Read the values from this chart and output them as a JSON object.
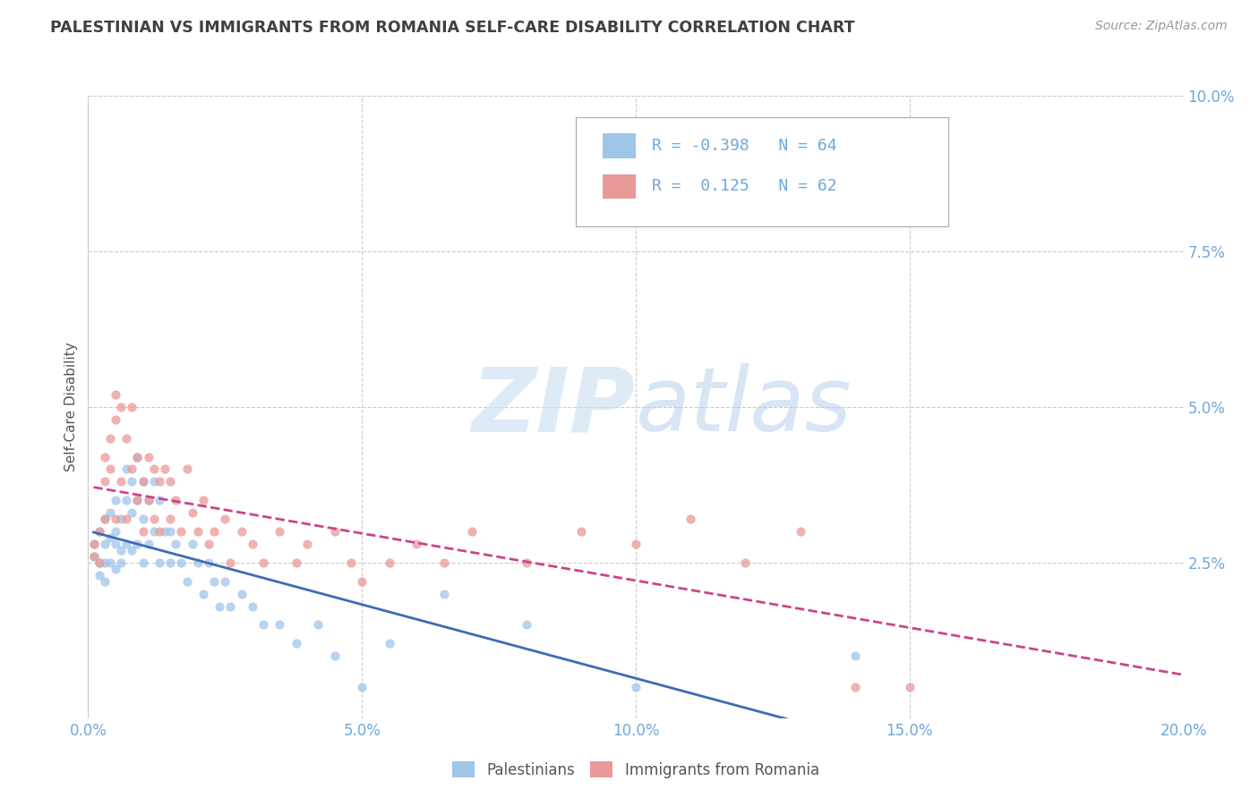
{
  "title": "PALESTINIAN VS IMMIGRANTS FROM ROMANIA SELF-CARE DISABILITY CORRELATION CHART",
  "source": "Source: ZipAtlas.com",
  "ylabel": "Self-Care Disability",
  "xlim": [
    0.0,
    0.2
  ],
  "ylim": [
    0.0,
    0.1
  ],
  "xticks": [
    0.0,
    0.05,
    0.1,
    0.15,
    0.2
  ],
  "yticks_right": [
    0.025,
    0.05,
    0.075,
    0.1
  ],
  "color_blue": "#9fc5e8",
  "color_pink": "#ea9999",
  "color_line_blue": "#3d6cb5",
  "color_line_pink": "#cc4488",
  "color_axis_ticks": "#6fa8dc",
  "color_title": "#404040",
  "color_source": "#999999",
  "legend_label1": "Palestinians",
  "legend_label2": "Immigrants from Romania",
  "palestinians_x": [
    0.001,
    0.001,
    0.002,
    0.002,
    0.002,
    0.003,
    0.003,
    0.003,
    0.003,
    0.004,
    0.004,
    0.004,
    0.005,
    0.005,
    0.005,
    0.005,
    0.006,
    0.006,
    0.006,
    0.007,
    0.007,
    0.007,
    0.008,
    0.008,
    0.008,
    0.009,
    0.009,
    0.009,
    0.01,
    0.01,
    0.01,
    0.011,
    0.011,
    0.012,
    0.012,
    0.013,
    0.013,
    0.014,
    0.015,
    0.015,
    0.016,
    0.017,
    0.018,
    0.019,
    0.02,
    0.021,
    0.022,
    0.023,
    0.024,
    0.025,
    0.026,
    0.028,
    0.03,
    0.032,
    0.035,
    0.038,
    0.042,
    0.045,
    0.05,
    0.055,
    0.065,
    0.08,
    0.1,
    0.14
  ],
  "palestinians_y": [
    0.028,
    0.026,
    0.03,
    0.025,
    0.023,
    0.032,
    0.028,
    0.025,
    0.022,
    0.033,
    0.029,
    0.025,
    0.035,
    0.03,
    0.028,
    0.024,
    0.032,
    0.027,
    0.025,
    0.04,
    0.035,
    0.028,
    0.038,
    0.033,
    0.027,
    0.042,
    0.035,
    0.028,
    0.038,
    0.032,
    0.025,
    0.035,
    0.028,
    0.038,
    0.03,
    0.035,
    0.025,
    0.03,
    0.03,
    0.025,
    0.028,
    0.025,
    0.022,
    0.028,
    0.025,
    0.02,
    0.025,
    0.022,
    0.018,
    0.022,
    0.018,
    0.02,
    0.018,
    0.015,
    0.015,
    0.012,
    0.015,
    0.01,
    0.005,
    0.012,
    0.02,
    0.015,
    0.005,
    0.01
  ],
  "romania_x": [
    0.001,
    0.001,
    0.002,
    0.002,
    0.003,
    0.003,
    0.003,
    0.004,
    0.004,
    0.005,
    0.005,
    0.005,
    0.006,
    0.006,
    0.007,
    0.007,
    0.008,
    0.008,
    0.009,
    0.009,
    0.01,
    0.01,
    0.011,
    0.011,
    0.012,
    0.012,
    0.013,
    0.013,
    0.014,
    0.015,
    0.015,
    0.016,
    0.017,
    0.018,
    0.019,
    0.02,
    0.021,
    0.022,
    0.023,
    0.025,
    0.026,
    0.028,
    0.03,
    0.032,
    0.035,
    0.038,
    0.04,
    0.045,
    0.048,
    0.05,
    0.055,
    0.06,
    0.065,
    0.07,
    0.08,
    0.09,
    0.1,
    0.11,
    0.12,
    0.13,
    0.14,
    0.15
  ],
  "romania_y": [
    0.028,
    0.026,
    0.03,
    0.025,
    0.042,
    0.038,
    0.032,
    0.045,
    0.04,
    0.052,
    0.048,
    0.032,
    0.05,
    0.038,
    0.045,
    0.032,
    0.05,
    0.04,
    0.042,
    0.035,
    0.038,
    0.03,
    0.042,
    0.035,
    0.04,
    0.032,
    0.038,
    0.03,
    0.04,
    0.038,
    0.032,
    0.035,
    0.03,
    0.04,
    0.033,
    0.03,
    0.035,
    0.028,
    0.03,
    0.032,
    0.025,
    0.03,
    0.028,
    0.025,
    0.03,
    0.025,
    0.028,
    0.03,
    0.025,
    0.022,
    0.025,
    0.028,
    0.025,
    0.03,
    0.025,
    0.03,
    0.028,
    0.032,
    0.025,
    0.03,
    0.005,
    0.005
  ]
}
